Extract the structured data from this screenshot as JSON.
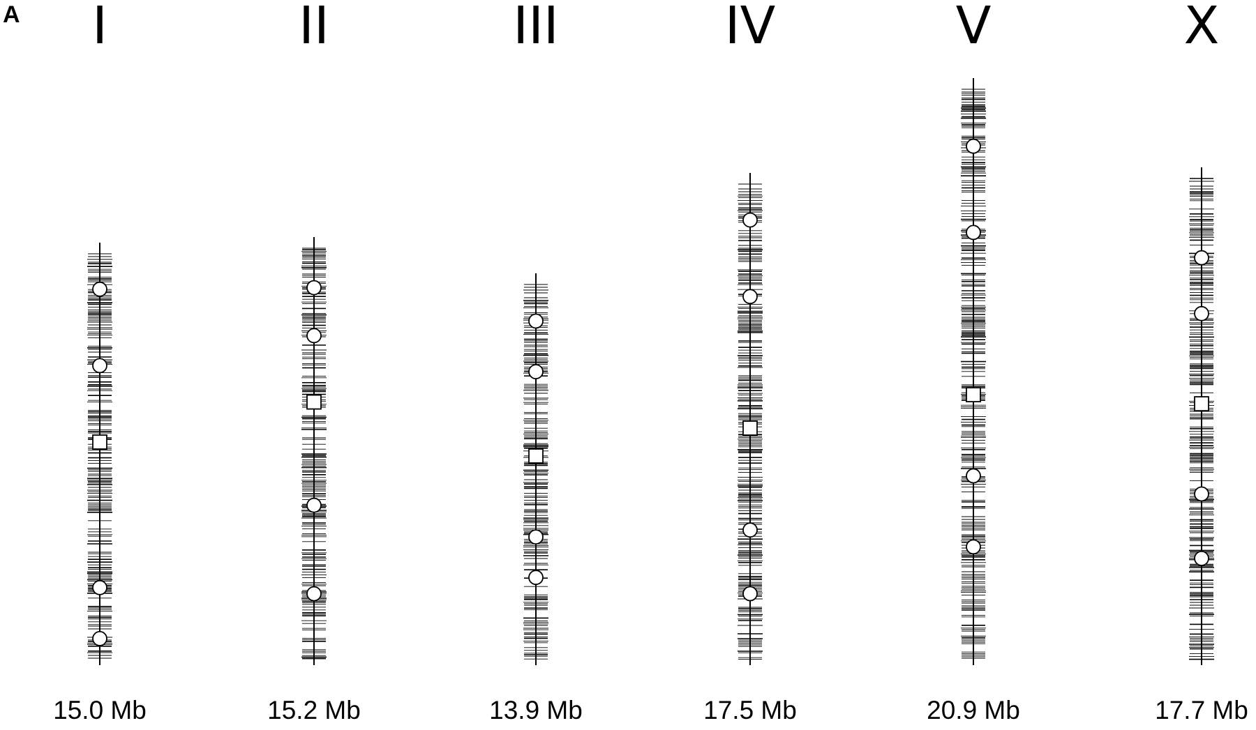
{
  "panel_label": "A",
  "colors": {
    "ink": "#000000",
    "marker_fill": "#ffffff"
  },
  "legend": null,
  "chromosomes": [
    {
      "name": "I",
      "size_label": "15.0 Mb",
      "size_mb": 15.0,
      "circles": [
        0.08,
        0.29,
        0.9,
        1.04
      ],
      "square": 0.5
    },
    {
      "name": "II",
      "size_label": "15.2 Mb",
      "size_mb": 15.2,
      "circles": [
        0.09,
        0.22,
        0.68,
        0.92
      ],
      "square": 0.4
    },
    {
      "name": "III",
      "size_label": "13.9 Mb",
      "size_mb": 13.9,
      "circles": [
        0.09,
        0.24,
        0.73,
        0.85
      ],
      "square": 0.49
    },
    {
      "name": "IV",
      "size_label": "17.5 Mb",
      "size_mb": 17.5,
      "circles": [
        0.07,
        0.25,
        0.8,
        0.95
      ],
      "square": 0.56
    },
    {
      "name": "V",
      "size_label": "20.9 Mb",
      "size_mb": 20.9,
      "circles": [
        0.1,
        0.27,
        0.75,
        0.89
      ],
      "square": 0.59
    },
    {
      "name": "X",
      "size_label": "17.7 Mb",
      "size_mb": 17.7,
      "circles": [
        0.17,
        0.3,
        0.72,
        0.87
      ],
      "square": 0.51
    }
  ]
}
